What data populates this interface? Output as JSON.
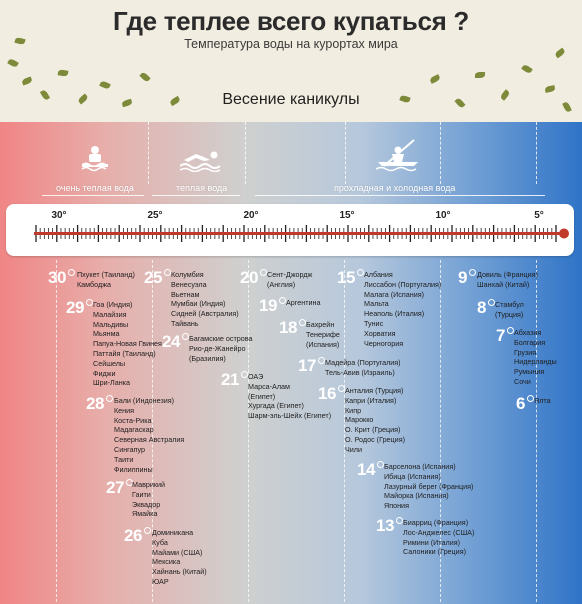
{
  "header": {
    "title": "Где теплее всего купаться ?",
    "subtitle": "Температура воды на курортах мира",
    "section": "Весение каникулы"
  },
  "categories": [
    {
      "label": "очень теплая вода",
      "icon": "bather-icon"
    },
    {
      "label": "теплая вода",
      "icon": "swimmer-icon"
    },
    {
      "label": "прохладная и холодная вода",
      "icon": "kayak-icon"
    }
  ],
  "thermometer": {
    "ticks": [
      "30°",
      "25°",
      "20°",
      "15°",
      "10°",
      "5°"
    ],
    "tube_color": "#c0392b"
  },
  "groups": [
    {
      "temp": "30",
      "places": [
        "Пхукет (Таиланд)",
        "Камбоджа"
      ]
    },
    {
      "temp": "29",
      "places": [
        "Гоа (Индия)",
        "Малайзия",
        "Мальдивы",
        "Мьянма",
        "Папуа-Новая Гвинея",
        "Паттайя (Таиланд)",
        "Сейшелы",
        "Фиджи",
        "Шри-Ланка"
      ]
    },
    {
      "temp": "28",
      "places": [
        "Бали (Индонезия)",
        "Кения",
        "Коста-Рика",
        "Мадагаскар",
        "Северная Австралия",
        "Сингапур",
        "Таити",
        "Филиппины"
      ]
    },
    {
      "temp": "27",
      "places": [
        "Маврикий",
        "Гаити",
        "Эквадор",
        "Ямайка"
      ]
    },
    {
      "temp": "26",
      "places": [
        "Доминикана",
        "Куба",
        "Майами (США)",
        "Мексика",
        "Хайнань (Китай)",
        "ЮАР"
      ]
    },
    {
      "temp": "25",
      "places": [
        "Колумбия",
        "Венесуэла",
        "Вьетнам",
        "Мумбаи (Индия)",
        "Сидней (Австралия)",
        "Тайвань"
      ]
    },
    {
      "temp": "24",
      "places": [
        "Багамские острова",
        "Рио-де-Жанейро",
        "(Бразилия)"
      ]
    },
    {
      "temp": "21",
      "places": [
        "ОАЭ",
        "Марса-Алам",
        "(Египет)",
        "Хургада (Египет)",
        "Шарм-эль-Шейх (Египет)"
      ]
    },
    {
      "temp": "20",
      "places": [
        "Сент-Джордж",
        "(Англия)"
      ]
    },
    {
      "temp": "19",
      "places": [
        "Аргентина"
      ]
    },
    {
      "temp": "18",
      "places": [
        "Бахрейн",
        "Тенерифе",
        "(Испания)"
      ]
    },
    {
      "temp": "17",
      "places": [
        "Мадейра (Португалия)",
        "Тель-Авив (Израиль)"
      ]
    },
    {
      "temp": "16",
      "places": [
        "Анталия (Турция)",
        "Капри (Италия)",
        "Кипр",
        "Марокко",
        "О. Крит (Греция)",
        "О. Родос (Греция)",
        "Чили"
      ]
    },
    {
      "temp": "15",
      "places": [
        "Албания",
        "Лиссабон (Португалия)",
        "Малага (Испания)",
        "Мальта",
        "Неаполь (Италия)",
        "Тунис",
        "Хорватия",
        "Черногория"
      ]
    },
    {
      "temp": "14",
      "places": [
        "Барселона (Испания)",
        "Ибица (Испания)",
        "Лазурный берег (Франция)",
        "Майорка (Испания)",
        "Япония"
      ]
    },
    {
      "temp": "13",
      "places": [
        "Биарриц (Франция)",
        "Лос-Анджелес (США)",
        "Римини (Италия)",
        "Салоники (Греция)"
      ]
    },
    {
      "temp": "9",
      "places": [
        "Довиль (Франция)",
        "Шанхай (Китай)"
      ]
    },
    {
      "temp": "8",
      "places": [
        "Стамбул",
        "(Турция)"
      ]
    },
    {
      "temp": "7",
      "places": [
        "Абхазия",
        "Болгария",
        "Грузия",
        "Нидерланды",
        "Румыния",
        "Сочи"
      ]
    },
    {
      "temp": "6",
      "places": [
        "Ялта"
      ]
    }
  ]
}
